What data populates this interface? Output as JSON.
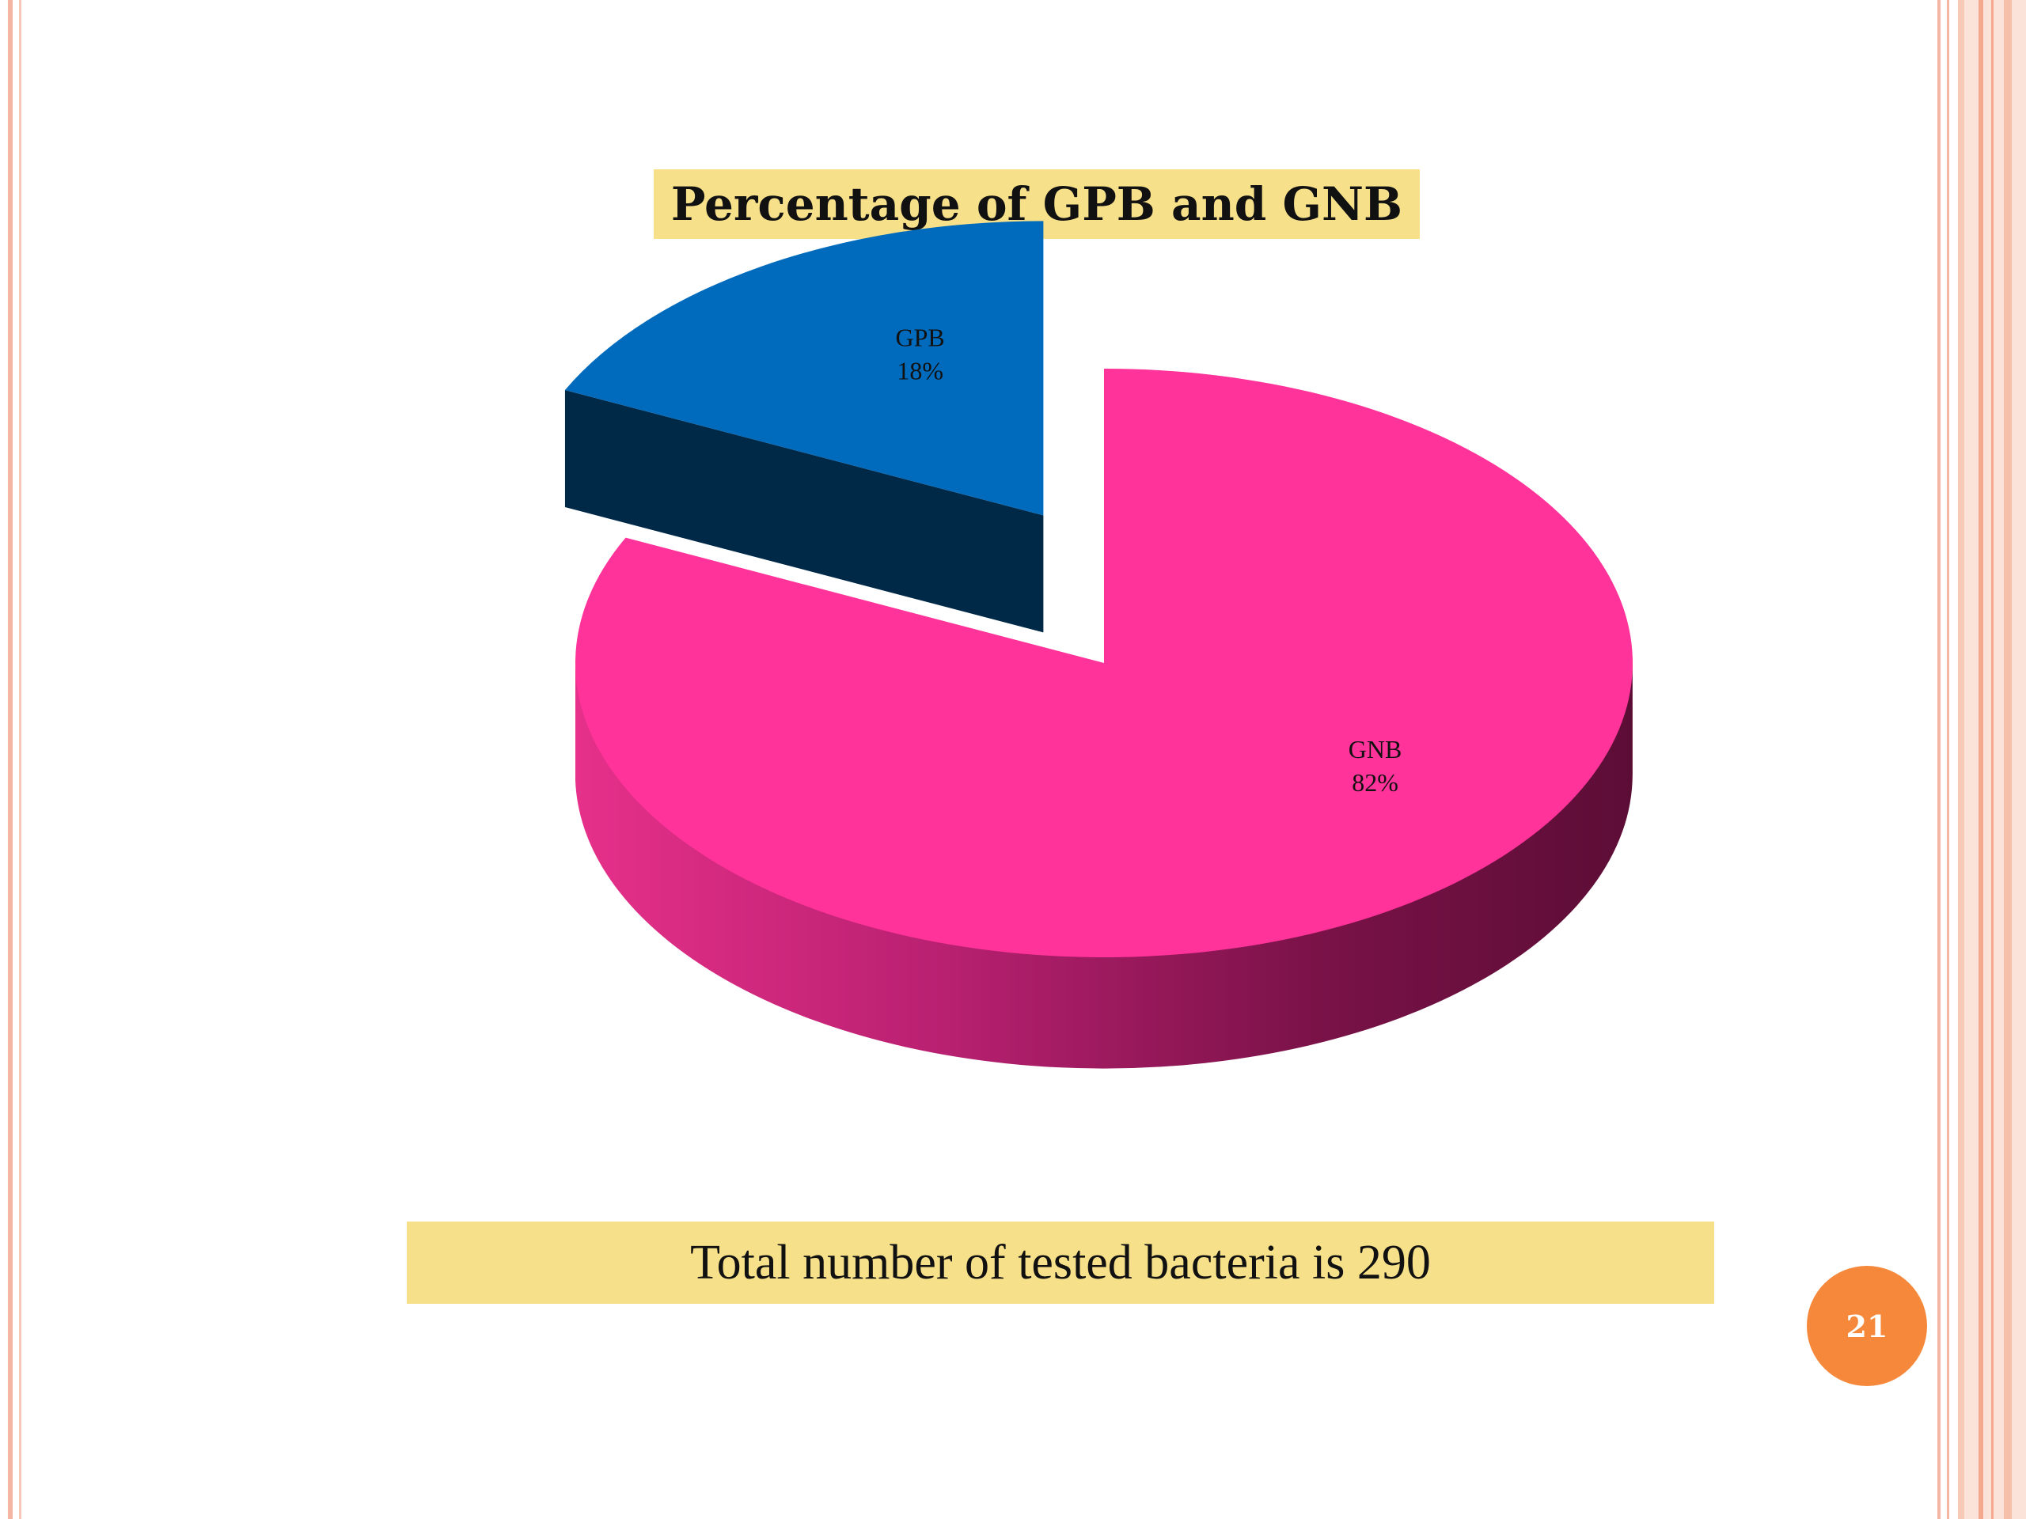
{
  "slide": {
    "page_number": "21",
    "note": "Total number of tested bacteria is 290"
  },
  "colors": {
    "title_highlight": "#f7e08a",
    "gnb": "#ff3399",
    "gpb": "#006bbd",
    "badge": "#f5883a"
  },
  "chart_data": {
    "type": "pie",
    "title": "Percentage of GPB and GNB",
    "style": "3d-exploded",
    "slices": [
      {
        "name": "GNB",
        "value": 82,
        "label": "82%",
        "color": "#ff3399"
      },
      {
        "name": "GPB",
        "value": 18,
        "label": "18%",
        "color": "#006bbd"
      }
    ]
  }
}
